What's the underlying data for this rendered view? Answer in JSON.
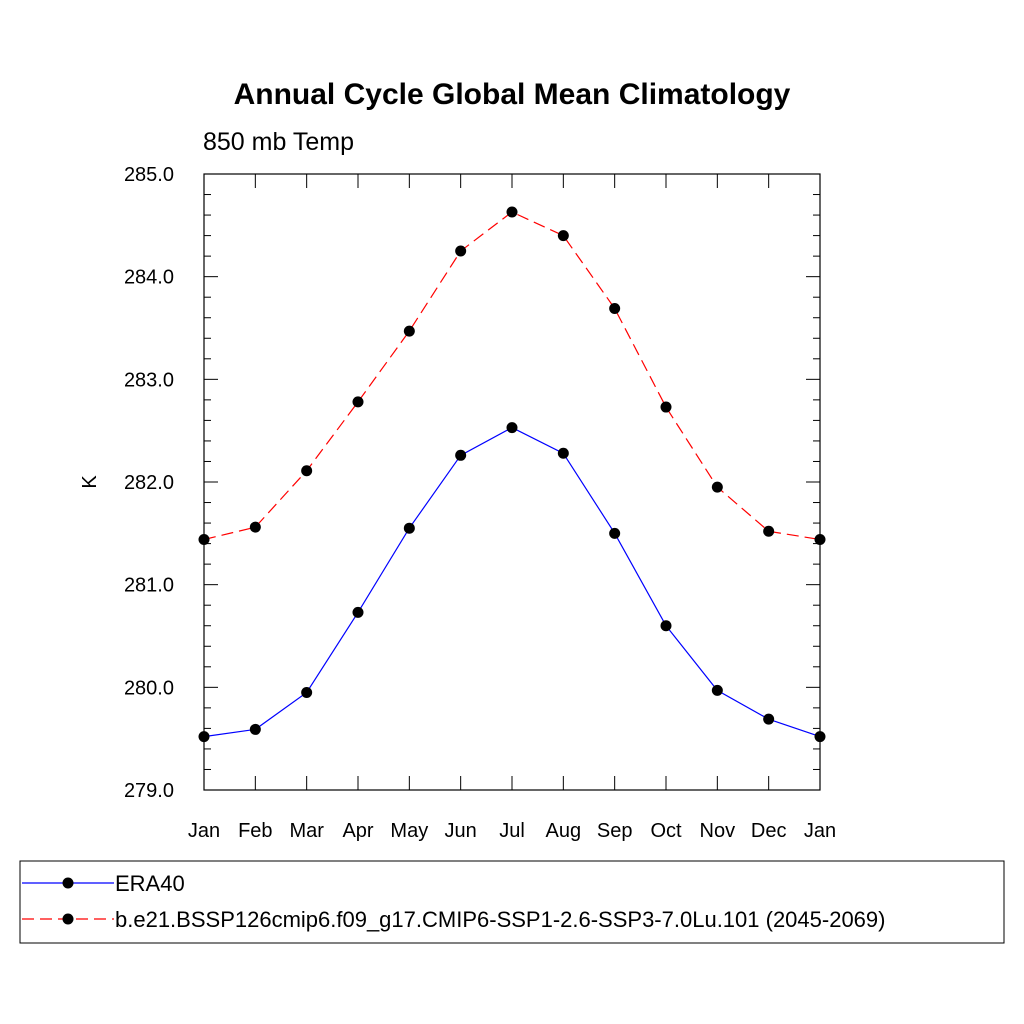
{
  "chart_data": {
    "type": "line",
    "title": "Annual Cycle Global Mean Climatology",
    "subtitle": "850 mb Temp",
    "xlabel": "",
    "ylabel": "K",
    "categories": [
      "Jan",
      "Feb",
      "Mar",
      "Apr",
      "May",
      "Jun",
      "Jul",
      "Aug",
      "Sep",
      "Oct",
      "Nov",
      "Dec",
      "Jan"
    ],
    "ylim": [
      279.0,
      285.0
    ],
    "yticks": [
      "279.0",
      "280.0",
      "281.0",
      "282.0",
      "283.0",
      "284.0",
      "285.0"
    ],
    "grid": false,
    "legend_position": "bottom",
    "series": [
      {
        "name": "ERA40",
        "color": "#0000ff",
        "dash": "solid",
        "values": [
          279.52,
          279.59,
          279.95,
          280.73,
          281.55,
          282.26,
          282.53,
          282.28,
          281.5,
          280.6,
          279.97,
          279.69,
          279.52
        ]
      },
      {
        "name": "b.e21.BSSP126cmip6.f09_g17.CMIP6-SSP1-2.6-SSP3-7.0Lu.101 (2045-2069)",
        "color": "#ff0000",
        "dash": "dashed",
        "values": [
          281.44,
          281.56,
          282.11,
          282.78,
          283.47,
          284.25,
          284.63,
          284.4,
          283.69,
          282.73,
          281.95,
          281.52,
          281.44
        ]
      }
    ]
  }
}
